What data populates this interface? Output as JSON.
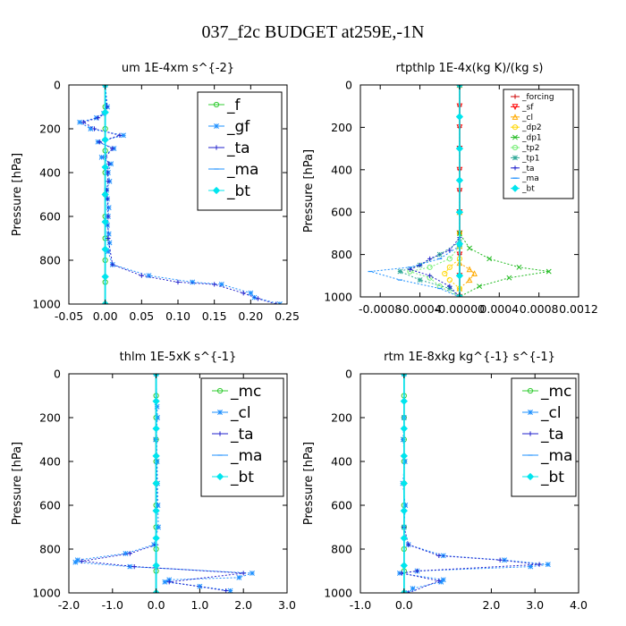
{
  "figure_title": "037_f2c  BUDGET at259E,-1N",
  "chart_data": [
    {
      "type": "line",
      "title": "um   1E-4xm s^{-2}",
      "ylabel": "Pressure [hPa]",
      "xlabel": "",
      "xlim": [
        -0.05,
        0.25
      ],
      "ylim": [
        1000,
        0
      ],
      "xticks": [
        "-0.05",
        "0.00",
        "0.05",
        "0.10",
        "0.15",
        "0.20",
        "0.25"
      ],
      "xtick_values": [
        -0.05,
        0,
        0.05,
        0.1,
        0.15,
        0.2,
        0.25
      ],
      "yticks": [
        "0",
        "200",
        "400",
        "600",
        "800",
        "1000"
      ],
      "ytick_values": [
        0,
        200,
        400,
        600,
        800,
        1000
      ],
      "legend": {
        "position": "top-right",
        "style": "large",
        "entries": [
          "_f",
          "_gf",
          "_ta",
          "_ma",
          "_bt"
        ]
      },
      "series": [
        {
          "name": "_f",
          "color": "#33cc33",
          "marker": "o",
          "x": [
            0,
            0,
            0,
            0,
            0,
            0,
            0,
            0,
            0,
            0,
            0
          ],
          "y": [
            0,
            100,
            200,
            300,
            400,
            500,
            600,
            700,
            800,
            900,
            1000
          ]
        },
        {
          "name": "_gf",
          "color": "#1e90ff",
          "marker": "*",
          "x": [
            0,
            0.003,
            -0.002,
            -0.012,
            -0.035,
            -0.02,
            0.025,
            -0.01,
            0.012,
            -0.005,
            0.008,
            0.004,
            0.006,
            0.002,
            0.003,
            0.005,
            0.004,
            0.003,
            0.005,
            0.006,
            0.004,
            0.01,
            0.06,
            0.12,
            0.16,
            0.2,
            0.205,
            0.24
          ],
          "y": [
            0,
            100,
            130,
            150,
            170,
            200,
            230,
            260,
            290,
            330,
            360,
            400,
            440,
            480,
            520,
            560,
            600,
            640,
            680,
            720,
            760,
            820,
            870,
            900,
            910,
            950,
            970,
            1000
          ]
        },
        {
          "name": "_ta",
          "color": "#2222cc",
          "marker": "+",
          "x": [
            0,
            0.002,
            0.0,
            -0.01,
            -0.03,
            -0.015,
            0.02,
            -0.008,
            0.01,
            0.0,
            0.005,
            0.003,
            0.004,
            0.002,
            0.003,
            0.004,
            0.004,
            0.01,
            0.05,
            0.1,
            0.15,
            0.19,
            0.21,
            0.235
          ],
          "y": [
            0,
            100,
            130,
            150,
            170,
            200,
            230,
            260,
            290,
            330,
            360,
            400,
            440,
            480,
            520,
            600,
            700,
            820,
            870,
            900,
            910,
            950,
            975,
            1000
          ]
        },
        {
          "name": "_ma",
          "color": "#1e90ff",
          "marker": "-",
          "x": [
            0,
            0,
            0,
            0,
            0,
            0,
            0,
            0,
            0
          ],
          "y": [
            0,
            125,
            250,
            375,
            500,
            625,
            750,
            875,
            1000
          ]
        },
        {
          "name": "_bt",
          "color": "#00e5ee",
          "marker": "diamond",
          "x": [
            0,
            0,
            0,
            0,
            0,
            0,
            0,
            0,
            0
          ],
          "y": [
            0,
            125,
            250,
            375,
            500,
            625,
            750,
            875,
            1000
          ]
        }
      ]
    },
    {
      "type": "line",
      "title": "rtpthlp   1E-4x(kg K)/(kg s)",
      "ylabel": "Pressure [hPa]",
      "xlabel": "",
      "xlim": [
        -0.001,
        0.0012
      ],
      "ylim": [
        1000,
        0
      ],
      "xticks": [
        "-0.0008",
        "-0.0004",
        "-0.00000",
        "0.0004",
        "0.0008",
        "0.0012"
      ],
      "xtick_values": [
        -0.0008,
        -0.0004,
        0,
        0.0004,
        0.0008,
        0.0012
      ],
      "yticks": [
        "0",
        "200",
        "400",
        "600",
        "800",
        "1000"
      ],
      "ytick_values": [
        0,
        200,
        400,
        600,
        800,
        1000
      ],
      "legend": {
        "position": "top-right",
        "style": "small",
        "entries": [
          "_forcing",
          "_sf",
          "_cl",
          "_dp2",
          "_dp1",
          "_tp2",
          "_tp1",
          "_ta",
          "_ma",
          "_bt"
        ]
      },
      "series": [
        {
          "name": "_forcing",
          "color": "#cc0000",
          "marker": "+",
          "x": [
            0,
            0,
            0,
            0,
            0,
            0,
            0,
            0,
            0,
            0,
            0
          ],
          "y": [
            0,
            100,
            200,
            300,
            400,
            500,
            600,
            700,
            800,
            900,
            1000
          ]
        },
        {
          "name": "_sf",
          "color": "#ff0000",
          "marker": "v",
          "x": [
            0,
            0,
            0,
            0,
            0,
            0,
            0,
            0,
            0,
            0,
            0
          ],
          "y": [
            0,
            100,
            200,
            300,
            400,
            500,
            600,
            700,
            800,
            900,
            1000
          ]
        },
        {
          "name": "_cl",
          "color": "#ffaa00",
          "marker": "^",
          "x": [
            0,
            0,
            0,
            0,
            0.0001,
            0.00015,
            0.0001,
            0,
            0
          ],
          "y": [
            0,
            600,
            760,
            840,
            870,
            890,
            920,
            960,
            1000
          ]
        },
        {
          "name": "_dp2",
          "color": "#ffd700",
          "marker": "o",
          "x": [
            0,
            0,
            0,
            -0.0001,
            -0.00015,
            -0.0001,
            0,
            0
          ],
          "y": [
            0,
            700,
            820,
            860,
            890,
            920,
            960,
            1000
          ]
        },
        {
          "name": "_dp1",
          "color": "#22bb22",
          "marker": "x",
          "x": [
            0,
            0,
            0.0001,
            0.0003,
            0.0006,
            0.0009,
            0.0005,
            0.0002,
            0
          ],
          "y": [
            0,
            700,
            770,
            820,
            860,
            880,
            910,
            950,
            1000
          ]
        },
        {
          "name": "_tp2",
          "color": "#77ee77",
          "marker": "o",
          "x": [
            0,
            0,
            -0.0001,
            -0.0003,
            -0.0005,
            -0.0003,
            -0.0002,
            0
          ],
          "y": [
            0,
            760,
            820,
            860,
            880,
            910,
            950,
            1000
          ]
        },
        {
          "name": "_tp1",
          "color": "#33aa99",
          "marker": "*",
          "x": [
            0,
            0,
            -0.0002,
            -0.0004,
            -0.0006,
            -0.0004,
            -0.0001,
            0
          ],
          "y": [
            0,
            740,
            800,
            850,
            880,
            920,
            960,
            1000
          ]
        },
        {
          "name": "_ta",
          "color": "#2222cc",
          "marker": "+",
          "x": [
            0,
            0,
            -0.0001,
            -0.0003,
            -0.0004,
            -0.0005,
            -0.0003,
            -0.0001,
            0
          ],
          "y": [
            0,
            720,
            780,
            820,
            850,
            870,
            900,
            950,
            1000
          ]
        },
        {
          "name": "_ma",
          "color": "#1e90ff",
          "marker": "-",
          "x": [
            0,
            0,
            -0.0002,
            -0.0005,
            -0.0009,
            -0.0006,
            -0.0002,
            0
          ],
          "y": [
            0,
            760,
            820,
            860,
            880,
            920,
            960,
            1000
          ]
        },
        {
          "name": "_bt",
          "color": "#00e5ee",
          "marker": "diamond",
          "x": [
            0,
            0,
            0,
            0,
            0,
            0,
            0,
            0
          ],
          "y": [
            0,
            150,
            300,
            450,
            600,
            750,
            900,
            1000
          ]
        }
      ]
    },
    {
      "type": "line",
      "title": "thlm   1E-5xK s^{-1}",
      "ylabel": "Pressure [hPa]",
      "xlabel": "",
      "xlim": [
        -2.0,
        3.0
      ],
      "ylim": [
        1000,
        0
      ],
      "xticks": [
        "-2.0",
        "-1.0",
        "0.0",
        "1.0",
        "2.0",
        "3.0"
      ],
      "xtick_values": [
        -2,
        -1,
        0,
        1,
        2,
        3
      ],
      "yticks": [
        "0",
        "200",
        "400",
        "600",
        "800",
        "1000"
      ],
      "ytick_values": [
        0,
        200,
        400,
        600,
        800,
        1000
      ],
      "legend": {
        "position": "top-right",
        "style": "large",
        "entries": [
          "_mc",
          "_cl",
          "_ta",
          "_ma",
          "_bt"
        ]
      },
      "series": [
        {
          "name": "_mc",
          "color": "#33cc33",
          "marker": "o",
          "x": [
            0,
            0,
            0,
            0,
            0,
            0,
            0,
            0,
            0,
            0,
            0
          ],
          "y": [
            0,
            100,
            200,
            300,
            400,
            500,
            600,
            700,
            800,
            900,
            1000
          ]
        },
        {
          "name": "_cl",
          "color": "#1e90ff",
          "marker": "*",
          "x": [
            0,
            0.02,
            0.03,
            -0.01,
            0.02,
            0.03,
            0.04,
            0.05,
            -0.05,
            -0.7,
            -1.8,
            -1.85,
            -0.6,
            2.2,
            1.9,
            0.3,
            0.2,
            1.0,
            1.7
          ],
          "y": [
            0,
            150,
            200,
            300,
            400,
            500,
            600,
            700,
            780,
            820,
            850,
            860,
            880,
            910,
            930,
            940,
            950,
            970,
            990
          ]
        },
        {
          "name": "_ta",
          "color": "#2222cc",
          "marker": "+",
          "x": [
            0,
            0.02,
            0,
            -0.6,
            -1.7,
            -0.5,
            2.0,
            0.3,
            1.6
          ],
          "y": [
            0,
            500,
            780,
            820,
            855,
            880,
            910,
            950,
            990
          ]
        },
        {
          "name": "_ma",
          "color": "#1e90ff",
          "marker": "-",
          "x": [
            0,
            0,
            0,
            0,
            0,
            0,
            0,
            0,
            0
          ],
          "y": [
            0,
            125,
            250,
            375,
            500,
            625,
            750,
            875,
            1000
          ]
        },
        {
          "name": "_bt",
          "color": "#00e5ee",
          "marker": "diamond",
          "x": [
            0,
            0,
            0,
            0,
            0,
            0,
            0,
            0,
            0
          ],
          "y": [
            0,
            125,
            250,
            375,
            500,
            625,
            750,
            875,
            1000
          ]
        }
      ]
    },
    {
      "type": "line",
      "title": "rtm   1E-8xkg kg^{-1} s^{-1}",
      "ylabel": "Pressure [hPa]",
      "xlabel": "",
      "xlim": [
        -1.0,
        4.0
      ],
      "ylim": [
        1000,
        0
      ],
      "xticks": [
        "-1.0",
        "0.0",
        "2.0",
        "3.0",
        "4.0"
      ],
      "xtick_values": [
        -1,
        0,
        2,
        3,
        4
      ],
      "yticks": [
        "0",
        "200",
        "400",
        "600",
        "800",
        "1000"
      ],
      "ytick_values": [
        0,
        200,
        400,
        600,
        800,
        1000
      ],
      "legend": {
        "position": "top-right",
        "style": "large",
        "entries": [
          "_mc",
          "_cl",
          "_ta",
          "_ma",
          "_bt"
        ]
      },
      "series": [
        {
          "name": "_mc",
          "color": "#33cc33",
          "marker": "o",
          "x": [
            0,
            0,
            0,
            0,
            0,
            0,
            0,
            0,
            0,
            0,
            0
          ],
          "y": [
            0,
            100,
            200,
            300,
            400,
            500,
            600,
            700,
            800,
            900,
            1000
          ]
        },
        {
          "name": "_cl",
          "color": "#1e90ff",
          "marker": "*",
          "x": [
            0,
            0,
            -0.02,
            0.02,
            -0.03,
            0.03,
            0,
            0.1,
            0.9,
            2.3,
            3.3,
            2.9,
            0.3,
            -0.1,
            0.9,
            0.85,
            0.2,
            0.1
          ],
          "y": [
            0,
            200,
            300,
            400,
            500,
            600,
            700,
            780,
            830,
            850,
            870,
            880,
            900,
            910,
            940,
            950,
            980,
            1000
          ]
        },
        {
          "name": "_ta",
          "color": "#2222cc",
          "marker": "+",
          "x": [
            0,
            0,
            0.1,
            0.8,
            2.2,
            3.1,
            0.3,
            -0.05,
            0.8,
            0.1
          ],
          "y": [
            0,
            700,
            780,
            830,
            850,
            870,
            900,
            910,
            945,
            1000
          ]
        },
        {
          "name": "_ma",
          "color": "#1e90ff",
          "marker": "-",
          "x": [
            0,
            0,
            0,
            0,
            0,
            0,
            0,
            0,
            0
          ],
          "y": [
            0,
            125,
            250,
            375,
            500,
            625,
            750,
            875,
            1000
          ]
        },
        {
          "name": "_bt",
          "color": "#00e5ee",
          "marker": "diamond",
          "x": [
            0,
            0,
            0,
            0,
            0,
            0,
            0,
            0,
            0
          ],
          "y": [
            0,
            125,
            250,
            375,
            500,
            625,
            750,
            875,
            1000
          ]
        }
      ]
    }
  ]
}
